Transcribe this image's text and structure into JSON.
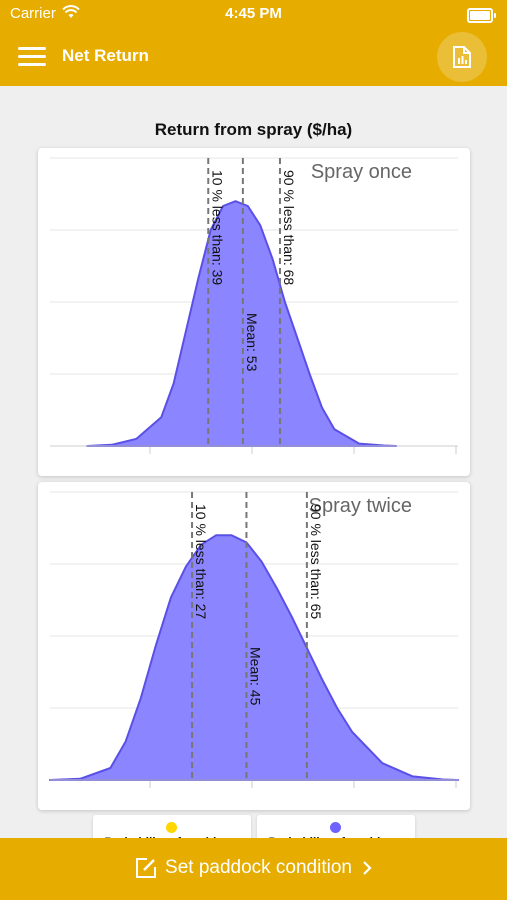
{
  "status_bar": {
    "carrier": "Carrier",
    "time": "4:45 PM"
  },
  "app_bar": {
    "title": "Net Return"
  },
  "page": {
    "title": "Return from spray ($/ha)"
  },
  "bottom_bar": {
    "label": "Set paddock condition"
  },
  "legend": [
    {
      "label": "Probability of positive...",
      "color": "#ffd600"
    },
    {
      "label": "Probability of positive...",
      "color": "#6c63ff"
    }
  ],
  "colors": {
    "accent": "#e6ac00",
    "fill": "#8b85ff",
    "stroke": "#5a50e6"
  },
  "chart_data": [
    {
      "type": "area",
      "title": "Spray once",
      "x": [
        -10,
        0,
        10,
        20,
        25,
        30,
        35,
        40,
        45,
        50,
        55,
        60,
        65,
        70,
        75,
        80,
        85,
        90,
        100,
        110,
        115
      ],
      "y": [
        0,
        0.05,
        0.3,
        1.2,
        2.6,
        4.8,
        7.0,
        9.0,
        10.0,
        10.2,
        10.0,
        9.2,
        7.8,
        6.0,
        4.5,
        3.0,
        1.6,
        0.7,
        0.1,
        0.02,
        0
      ],
      "xlim": [
        -25,
        140
      ],
      "ylim": [
        0,
        12
      ],
      "markers": [
        {
          "label": "10 % less than: 39",
          "value": 39
        },
        {
          "label": "Mean: 53",
          "value": 53
        },
        {
          "label": "90 % less than: 68",
          "value": 68
        }
      ]
    },
    {
      "type": "area",
      "title": "Spray twice",
      "x": [
        -20,
        -10,
        0,
        5,
        10,
        15,
        20,
        25,
        30,
        35,
        40,
        45,
        50,
        55,
        60,
        65,
        70,
        75,
        80,
        90,
        100,
        110,
        115
      ],
      "y": [
        0,
        0.05,
        0.5,
        1.6,
        3.4,
        5.6,
        7.6,
        8.9,
        9.8,
        10.2,
        10.2,
        9.9,
        9.1,
        8.0,
        6.8,
        5.5,
        4.2,
        3.0,
        2.0,
        0.7,
        0.15,
        0.02,
        0
      ],
      "xlim": [
        -20,
        115
      ],
      "ylim": [
        0,
        12
      ],
      "markers": [
        {
          "label": "10 % less than: 27",
          "value": 27
        },
        {
          "label": "Mean: 45",
          "value": 45
        },
        {
          "label": "90 % less than: 65",
          "value": 65
        }
      ]
    }
  ]
}
